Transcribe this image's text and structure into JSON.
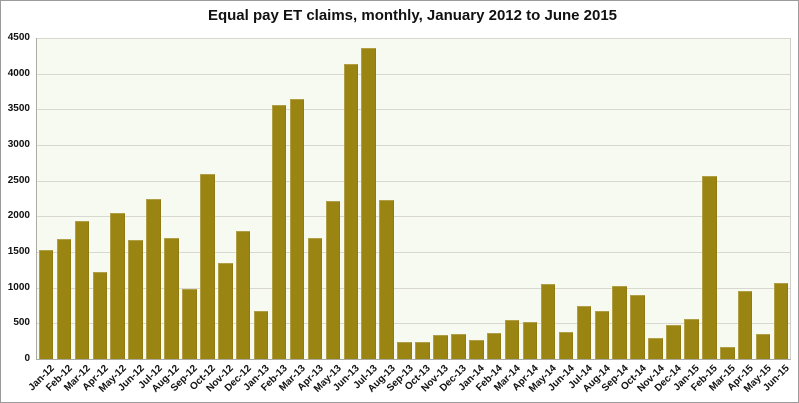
{
  "chart_data": {
    "type": "bar",
    "title": "Equal pay ET claims, monthly, January 2012 to June 2015",
    "categories": [
      "Jan-12",
      "Feb-12",
      "Mar-12",
      "Apr-12",
      "May-12",
      "Jun-12",
      "Jul-12",
      "Aug-12",
      "Sep-12",
      "Oct-12",
      "Nov-12",
      "Dec-12",
      "Jan-13",
      "Feb-13",
      "Mar-13",
      "Apr-13",
      "May-13",
      "Jun-13",
      "Jul-13",
      "Aug-13",
      "Sep-13",
      "Oct-13",
      "Nov-13",
      "Dec-13",
      "Jan-14",
      "Feb-14",
      "Mar-14",
      "Apr-14",
      "May-14",
      "Jun-14",
      "Jul-14",
      "Aug-14",
      "Sep-14",
      "Oct-14",
      "Nov-14",
      "Dec-14",
      "Jan-15",
      "Feb-15",
      "Mar-15",
      "Apr-15",
      "May-15",
      "Jun-15"
    ],
    "values": [
      1530,
      1680,
      1930,
      1220,
      2040,
      1670,
      2240,
      1690,
      980,
      2600,
      1340,
      1800,
      680,
      3560,
      3650,
      1700,
      2220,
      4130,
      4360,
      2230,
      240,
      245,
      330,
      350,
      260,
      360,
      550,
      520,
      1050,
      380,
      750,
      680,
      1020,
      900,
      300,
      480,
      560,
      2570,
      170,
      960,
      350,
      1060
    ],
    "xlabel": "",
    "ylabel": "",
    "ylim": [
      0,
      4500
    ],
    "ytick_step": 500,
    "yticks": [
      "0",
      "500",
      "1000",
      "1500",
      "2000",
      "2500",
      "3000",
      "3500",
      "4000",
      "4500"
    ],
    "grid": true,
    "legend_position": "none",
    "colors": {
      "bar": "#9A8513",
      "plot_bg": "#F7FAF0",
      "gridline": "#D8D8D0",
      "axis": "#ABABA3",
      "text": "#111111",
      "frame": "#9B9B9B"
    }
  }
}
